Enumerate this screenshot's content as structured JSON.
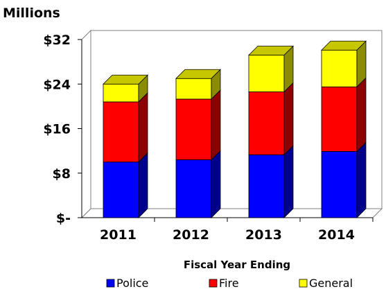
{
  "chart_data": {
    "type": "bar",
    "stacked": true,
    "three_d": true,
    "title": "",
    "unit_label": "Millions",
    "xlabel": "Fiscal Year Ending",
    "ylabel": "",
    "categories": [
      "2011",
      "2012",
      "2013",
      "2014"
    ],
    "ylim": [
      0,
      32
    ],
    "yticks": [
      0,
      8,
      16,
      24,
      32
    ],
    "ytick_labels": [
      "$-",
      "$8",
      "$16",
      "$24",
      "$32"
    ],
    "grid": false,
    "legend_position": "bottom",
    "series": [
      {
        "name": "Police",
        "color": "#0000ff",
        "values": [
          10.0,
          10.4,
          11.3,
          11.9
        ]
      },
      {
        "name": "Fire",
        "color": "#ff0000",
        "values": [
          10.8,
          10.9,
          11.3,
          11.6
        ]
      },
      {
        "name": "General",
        "color": "#ffff00",
        "values": [
          3.2,
          3.7,
          6.6,
          6.6
        ]
      }
    ]
  }
}
